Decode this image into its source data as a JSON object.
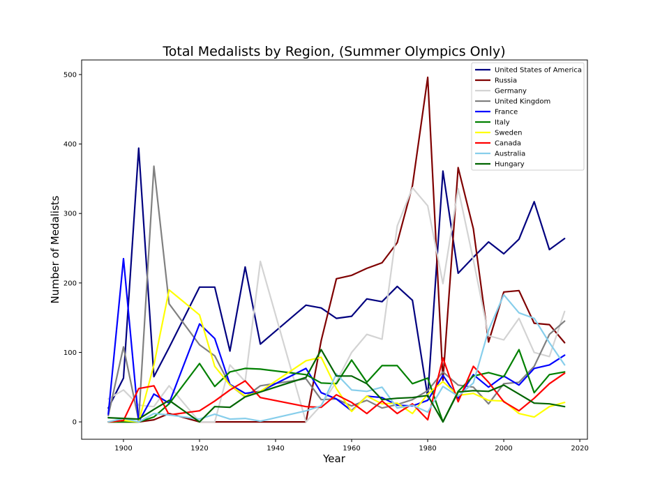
{
  "chart_data": {
    "type": "line",
    "title": "Total Medalists by Region, (Summer Olympics Only)",
    "xlabel": "Year",
    "ylabel": "Number of Medalists",
    "xlim": [
      1889,
      2022
    ],
    "ylim": [
      -25,
      521
    ],
    "xticks": [
      1900,
      1920,
      1940,
      1960,
      1980,
      2000,
      2020
    ],
    "yticks": [
      0,
      100,
      200,
      300,
      400,
      500
    ],
    "grid": false,
    "legend_position": "top-right",
    "series": [
      {
        "name": "United States of America",
        "color": "#00007f",
        "points": [
          [
            1896,
            20
          ],
          [
            1900,
            63
          ],
          [
            1904,
            394
          ],
          [
            1908,
            65
          ],
          [
            1912,
            107
          ],
          [
            1920,
            194
          ],
          [
            1924,
            194
          ],
          [
            1928,
            102
          ],
          [
            1932,
            223
          ],
          [
            1936,
            112
          ],
          [
            1948,
            168
          ],
          [
            1952,
            164
          ],
          [
            1956,
            149
          ],
          [
            1960,
            152
          ],
          [
            1964,
            177
          ],
          [
            1968,
            173
          ],
          [
            1972,
            195
          ],
          [
            1976,
            175
          ],
          [
            1980,
            36
          ],
          [
            1984,
            361
          ],
          [
            1988,
            214
          ],
          [
            1992,
            237
          ],
          [
            1996,
            259
          ],
          [
            2000,
            242
          ],
          [
            2004,
            263
          ],
          [
            2008,
            317
          ],
          [
            2012,
            248
          ],
          [
            2016,
            264
          ]
        ]
      },
      {
        "name": "Russia",
        "color": "#7f0000",
        "points": [
          [
            1896,
            0
          ],
          [
            1900,
            0
          ],
          [
            1904,
            0
          ],
          [
            1908,
            3
          ],
          [
            1912,
            12
          ],
          [
            1920,
            0
          ],
          [
            1924,
            0
          ],
          [
            1928,
            0
          ],
          [
            1932,
            0
          ],
          [
            1936,
            0
          ],
          [
            1948,
            0
          ],
          [
            1952,
            117
          ],
          [
            1956,
            206
          ],
          [
            1960,
            211
          ],
          [
            1964,
            221
          ],
          [
            1968,
            229
          ],
          [
            1972,
            258
          ],
          [
            1976,
            340
          ],
          [
            1980,
            496
          ],
          [
            1984,
            60
          ],
          [
            1988,
            366
          ],
          [
            1992,
            278
          ],
          [
            1996,
            115
          ],
          [
            2000,
            187
          ],
          [
            2004,
            189
          ],
          [
            2008,
            142
          ],
          [
            2012,
            140
          ],
          [
            2016,
            114
          ]
        ]
      },
      {
        "name": "Germany",
        "color": "#d3d3d3",
        "points": [
          [
            1896,
            33
          ],
          [
            1900,
            46
          ],
          [
            1904,
            24
          ],
          [
            1908,
            22
          ],
          [
            1912,
            52
          ],
          [
            1920,
            0
          ],
          [
            1924,
            0
          ],
          [
            1928,
            82
          ],
          [
            1932,
            58
          ],
          [
            1936,
            231
          ],
          [
            1948,
            0
          ],
          [
            1952,
            24
          ],
          [
            1956,
            58
          ],
          [
            1960,
            100
          ],
          [
            1964,
            126
          ],
          [
            1968,
            119
          ],
          [
            1972,
            282
          ],
          [
            1976,
            337
          ],
          [
            1980,
            311
          ],
          [
            1984,
            199
          ],
          [
            1988,
            336
          ],
          [
            1992,
            233
          ],
          [
            1996,
            124
          ],
          [
            2000,
            118
          ],
          [
            2004,
            149
          ],
          [
            2008,
            100
          ],
          [
            2012,
            94
          ],
          [
            2016,
            159
          ]
        ]
      },
      {
        "name": "United Kingdom",
        "color": "#808080",
        "points": [
          [
            1896,
            9
          ],
          [
            1900,
            108
          ],
          [
            1904,
            2
          ],
          [
            1908,
            368
          ],
          [
            1912,
            170
          ],
          [
            1920,
            111
          ],
          [
            1924,
            95
          ],
          [
            1928,
            53
          ],
          [
            1932,
            36
          ],
          [
            1936,
            52
          ],
          [
            1948,
            62
          ],
          [
            1952,
            32
          ],
          [
            1956,
            33
          ],
          [
            1960,
            23
          ],
          [
            1964,
            31
          ],
          [
            1968,
            20
          ],
          [
            1972,
            25
          ],
          [
            1976,
            32
          ],
          [
            1980,
            45
          ],
          [
            1984,
            72
          ],
          [
            1988,
            53
          ],
          [
            1992,
            50
          ],
          [
            1996,
            26
          ],
          [
            2000,
            55
          ],
          [
            2004,
            57
          ],
          [
            2008,
            80
          ],
          [
            2012,
            126
          ],
          [
            2016,
            145
          ]
        ]
      },
      {
        "name": "France",
        "color": "#0000ff",
        "points": [
          [
            1896,
            11
          ],
          [
            1900,
            235
          ],
          [
            1904,
            0
          ],
          [
            1908,
            40
          ],
          [
            1912,
            27
          ],
          [
            1920,
            141
          ],
          [
            1924,
            120
          ],
          [
            1928,
            54
          ],
          [
            1932,
            41
          ],
          [
            1936,
            44
          ],
          [
            1948,
            77
          ],
          [
            1952,
            42
          ],
          [
            1956,
            33
          ],
          [
            1960,
            16
          ],
          [
            1964,
            37
          ],
          [
            1968,
            35
          ],
          [
            1972,
            24
          ],
          [
            1976,
            23
          ],
          [
            1980,
            31
          ],
          [
            1984,
            67
          ],
          [
            1988,
            34
          ],
          [
            1992,
            68
          ],
          [
            1996,
            50
          ],
          [
            2000,
            66
          ],
          [
            2004,
            53
          ],
          [
            2008,
            77
          ],
          [
            2012,
            82
          ],
          [
            2016,
            96
          ]
        ]
      },
      {
        "name": "Italy",
        "color": "#008000",
        "points": [
          [
            1896,
            0
          ],
          [
            1900,
            0
          ],
          [
            1904,
            0
          ],
          [
            1908,
            7
          ],
          [
            1912,
            26
          ],
          [
            1920,
            84
          ],
          [
            1924,
            51
          ],
          [
            1928,
            72
          ],
          [
            1932,
            77
          ],
          [
            1936,
            76
          ],
          [
            1948,
            68
          ],
          [
            1952,
            56
          ],
          [
            1956,
            55
          ],
          [
            1960,
            89
          ],
          [
            1964,
            57
          ],
          [
            1968,
            81
          ],
          [
            1972,
            81
          ],
          [
            1976,
            55
          ],
          [
            1980,
            63
          ],
          [
            1984,
            0
          ],
          [
            1988,
            44
          ],
          [
            1992,
            66
          ],
          [
            1996,
            71
          ],
          [
            2000,
            65
          ],
          [
            2004,
            104
          ],
          [
            2008,
            42
          ],
          [
            2012,
            68
          ],
          [
            2016,
            72
          ]
        ]
      },
      {
        "name": "Sweden",
        "color": "#ffff00",
        "points": [
          [
            1896,
            0
          ],
          [
            1900,
            2
          ],
          [
            1904,
            0
          ],
          [
            1908,
            82
          ],
          [
            1912,
            190
          ],
          [
            1920,
            154
          ],
          [
            1924,
            80
          ],
          [
            1928,
            53
          ],
          [
            1932,
            37
          ],
          [
            1936,
            44
          ],
          [
            1948,
            88
          ],
          [
            1952,
            93
          ],
          [
            1956,
            48
          ],
          [
            1960,
            15
          ],
          [
            1964,
            37
          ],
          [
            1968,
            26
          ],
          [
            1972,
            27
          ],
          [
            1976,
            12
          ],
          [
            1980,
            40
          ],
          [
            1984,
            58
          ],
          [
            1988,
            38
          ],
          [
            1992,
            41
          ],
          [
            1996,
            31
          ],
          [
            2000,
            30
          ],
          [
            2004,
            12
          ],
          [
            2008,
            7
          ],
          [
            2012,
            22
          ],
          [
            2016,
            28
          ]
        ]
      },
      {
        "name": "Canada",
        "color": "#ff0000",
        "points": [
          [
            1896,
            0
          ],
          [
            1900,
            2
          ],
          [
            1904,
            48
          ],
          [
            1908,
            52
          ],
          [
            1912,
            10
          ],
          [
            1920,
            16
          ],
          [
            1924,
            30
          ],
          [
            1928,
            46
          ],
          [
            1932,
            59
          ],
          [
            1936,
            35
          ],
          [
            1948,
            22
          ],
          [
            1952,
            21
          ],
          [
            1956,
            39
          ],
          [
            1960,
            28
          ],
          [
            1964,
            12
          ],
          [
            1968,
            30
          ],
          [
            1972,
            12
          ],
          [
            1976,
            26
          ],
          [
            1980,
            3
          ],
          [
            1984,
            92
          ],
          [
            1988,
            29
          ],
          [
            1992,
            80
          ],
          [
            1996,
            57
          ],
          [
            2000,
            29
          ],
          [
            2004,
            16
          ],
          [
            2008,
            34
          ],
          [
            2012,
            55
          ],
          [
            2016,
            70
          ]
        ]
      },
      {
        "name": "Australia",
        "color": "#87ceeb",
        "points": [
          [
            1896,
            0
          ],
          [
            1900,
            5
          ],
          [
            1904,
            0
          ],
          [
            1908,
            12
          ],
          [
            1912,
            10
          ],
          [
            1920,
            4
          ],
          [
            1924,
            11
          ],
          [
            1928,
            4
          ],
          [
            1932,
            5
          ],
          [
            1936,
            1
          ],
          [
            1948,
            16
          ],
          [
            1952,
            23
          ],
          [
            1956,
            69
          ],
          [
            1960,
            46
          ],
          [
            1964,
            44
          ],
          [
            1968,
            50
          ],
          [
            1972,
            20
          ],
          [
            1976,
            24
          ],
          [
            1980,
            14
          ],
          [
            1984,
            51
          ],
          [
            1988,
            37
          ],
          [
            1992,
            56
          ],
          [
            1996,
            132
          ],
          [
            2000,
            183
          ],
          [
            2004,
            157
          ],
          [
            2008,
            149
          ],
          [
            2012,
            114
          ],
          [
            2016,
            82
          ]
        ]
      },
      {
        "name": "Hungary",
        "color": "#006400",
        "points": [
          [
            1896,
            6
          ],
          [
            1900,
            5
          ],
          [
            1904,
            4
          ],
          [
            1908,
            18
          ],
          [
            1912,
            31
          ],
          [
            1920,
            0
          ],
          [
            1924,
            22
          ],
          [
            1928,
            21
          ],
          [
            1932,
            36
          ],
          [
            1936,
            43
          ],
          [
            1948,
            64
          ],
          [
            1952,
            104
          ],
          [
            1956,
            66
          ],
          [
            1960,
            66
          ],
          [
            1964,
            55
          ],
          [
            1968,
            32
          ],
          [
            1972,
            34
          ],
          [
            1976,
            35
          ],
          [
            1980,
            38
          ],
          [
            1984,
            0
          ],
          [
            1988,
            43
          ],
          [
            1992,
            45
          ],
          [
            1996,
            44
          ],
          [
            2000,
            53
          ],
          [
            2004,
            40
          ],
          [
            2008,
            27
          ],
          [
            2012,
            26
          ],
          [
            2016,
            22
          ]
        ]
      }
    ]
  }
}
